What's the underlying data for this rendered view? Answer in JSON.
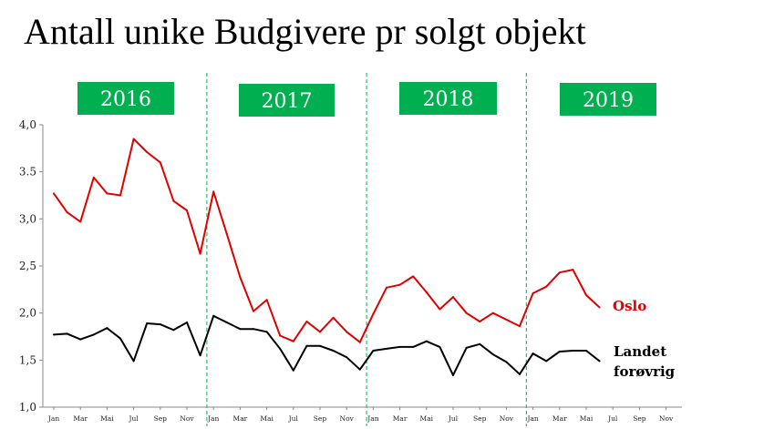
{
  "chart_data": {
    "type": "line",
    "title": "Antall unike Budgivere pr solgt objekt",
    "xlabel": "",
    "ylabel": "",
    "ylim": [
      1.0,
      4.0
    ],
    "y_ticks": [
      "1,0",
      "1,5",
      "2,0",
      "2,5",
      "3,0",
      "3.5",
      "4,0"
    ],
    "y_tick_values": [
      1.0,
      1.5,
      2.0,
      2.5,
      3.0,
      3.5,
      4.0
    ],
    "x_tick_labels": [
      "Jan",
      "Mar",
      "Mai",
      "Jul",
      "Sep",
      "Nov",
      "Jan",
      "Mar",
      "Mai",
      "Jul",
      "Sep",
      "Nov",
      "Jan",
      "Mar",
      "Mai",
      "Jul",
      "Sep",
      "Nov",
      "Jan",
      "Mar",
      "Mai",
      "Jul",
      "Sep",
      "Nov"
    ],
    "years": [
      "2016",
      "2017",
      "2018",
      "2019"
    ],
    "year_color": "#00b050",
    "divider_color": "#00b050",
    "series": [
      {
        "name": "Oslo",
        "color": "#e00000",
        "values": [
          3.27,
          3.07,
          2.97,
          3.44,
          3.27,
          3.25,
          3.85,
          3.71,
          3.6,
          3.19,
          3.09,
          2.63,
          3.29,
          2.84,
          2.38,
          2.02,
          2.14,
          1.76,
          1.7,
          1.91,
          1.8,
          1.95,
          1.8,
          1.69,
          1.99,
          2.27,
          2.3,
          2.39,
          2.22,
          2.04,
          2.17,
          2.0,
          1.91,
          2.0,
          1.93,
          1.86,
          2.21,
          2.28,
          2.43,
          2.46,
          2.19,
          2.06
        ]
      },
      {
        "name": "Landet forøvrig",
        "color": "#000000",
        "values": [
          1.77,
          1.78,
          1.72,
          1.77,
          1.84,
          1.73,
          1.49,
          1.89,
          1.88,
          1.82,
          1.9,
          1.55,
          1.97,
          1.9,
          1.83,
          1.83,
          1.8,
          1.62,
          1.39,
          1.65,
          1.65,
          1.6,
          1.53,
          1.4,
          1.6,
          1.62,
          1.64,
          1.64,
          1.7,
          1.64,
          1.34,
          1.63,
          1.67,
          1.56,
          1.48,
          1.35,
          1.57,
          1.49,
          1.59,
          1.6,
          1.6,
          1.49
        ]
      }
    ],
    "series_labels": {
      "oslo": "Oslo",
      "landet_line1": "Landet",
      "landet_line2": "forøvrig"
    }
  }
}
